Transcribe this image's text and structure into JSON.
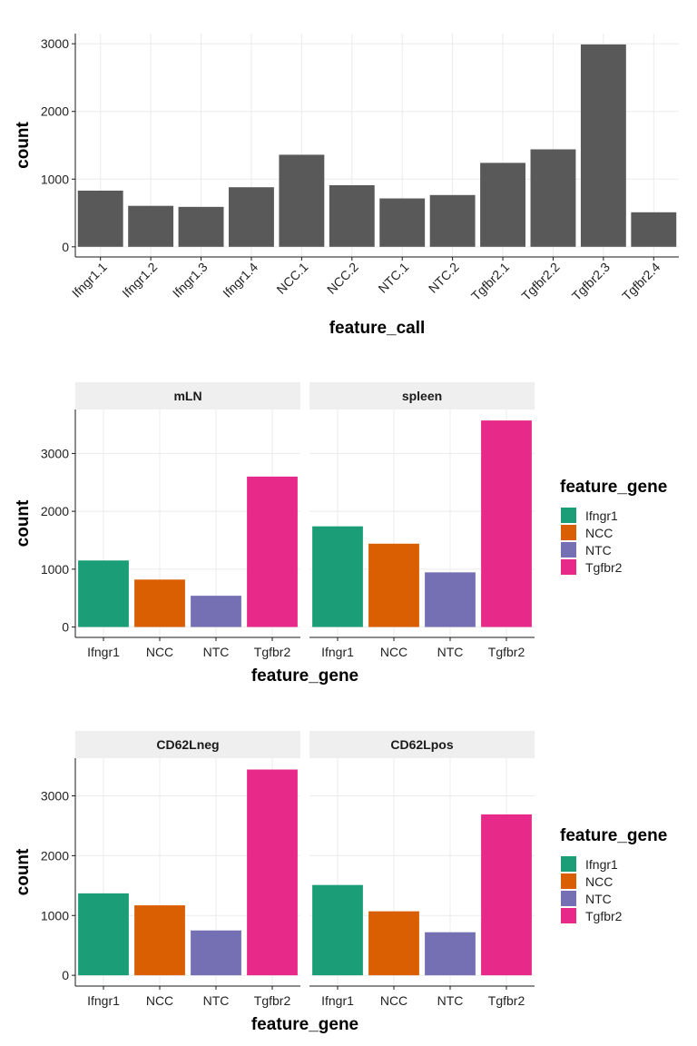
{
  "colors": {
    "bar_default": "#595959",
    "grid": "#ebebeb",
    "axis": "#1a1a1a",
    "strip_bg": "#efefef",
    "Ifngr1": "#1b9e77",
    "NCC": "#d95f02",
    "NTC": "#7570b3",
    "Tgfbr2": "#e7298a"
  },
  "chart_data": [
    {
      "type": "bar",
      "xlabel": "feature_call",
      "ylabel": "count",
      "categories": [
        "Ifngr1.1",
        "Ifngr1.2",
        "Ifngr1.3",
        "Ifngr1.4",
        "NCC.1",
        "NCC.2",
        "NTC.1",
        "NTC.2",
        "Tgfbr2.1",
        "Tgfbr2.2",
        "Tgfbr2.3",
        "Tgfbr2.4"
      ],
      "values": [
        830,
        605,
        590,
        880,
        1360,
        910,
        715,
        765,
        1240,
        1440,
        2990,
        510
      ],
      "ylim": [
        -150,
        3150
      ],
      "yticks": [
        0,
        1000,
        2000,
        3000
      ],
      "grid": true,
      "legend": "none"
    },
    {
      "type": "bar",
      "xlabel": "feature_gene",
      "ylabel": "count",
      "categories": [
        "Ifngr1",
        "NCC",
        "NTC",
        "Tgfbr2"
      ],
      "facets": [
        {
          "name": "mLN",
          "values": [
            1150,
            820,
            540,
            2600
          ]
        },
        {
          "name": "spleen",
          "values": [
            1740,
            1440,
            945,
            3570
          ]
        }
      ],
      "ylim": [
        -180,
        3760
      ],
      "yticks": [
        0,
        1000,
        2000,
        3000
      ],
      "grid": true,
      "legend": {
        "title": "feature_gene",
        "position": "right",
        "items": [
          "Ifngr1",
          "NCC",
          "NTC",
          "Tgfbr2"
        ]
      }
    },
    {
      "type": "bar",
      "xlabel": "feature_gene",
      "ylabel": "count",
      "categories": [
        "Ifngr1",
        "NCC",
        "NTC",
        "Tgfbr2"
      ],
      "facets": [
        {
          "name": "CD62Lneg",
          "values": [
            1370,
            1170,
            750,
            3440
          ]
        },
        {
          "name": "CD62Lpos",
          "values": [
            1510,
            1070,
            720,
            2690
          ]
        }
      ],
      "ylim": [
        -180,
        3630
      ],
      "yticks": [
        0,
        1000,
        2000,
        3000
      ],
      "grid": true,
      "legend": {
        "title": "feature_gene",
        "position": "right",
        "items": [
          "Ifngr1",
          "NCC",
          "NTC",
          "Tgfbr2"
        ]
      }
    }
  ]
}
